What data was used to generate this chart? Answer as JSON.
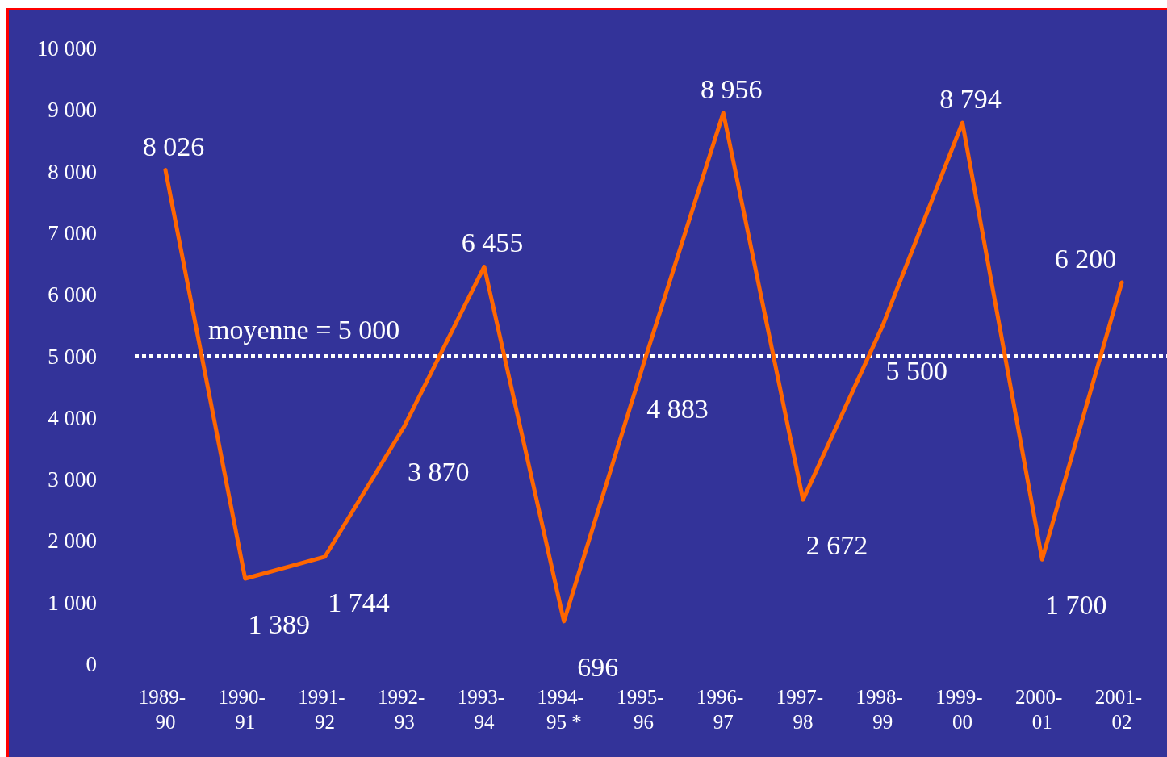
{
  "chart_data": {
    "type": "line",
    "categories": [
      "1989-90",
      "1990-91",
      "1991-92",
      "1992-93",
      "1993-94",
      "1994-95 *",
      "1995-96",
      "1996-97",
      "1997-98",
      "1998-99",
      "1999-00",
      "2000-01",
      "2001-02"
    ],
    "series": [
      {
        "color": "#ff6600",
        "values": [
          8026,
          1389,
          1744,
          3870,
          6455,
          696,
          4883,
          8956,
          2672,
          5500,
          8794,
          1700,
          6200
        ],
        "value_labels": [
          "8 026",
          "1 389",
          "1 744",
          "3 870",
          "6 455",
          "696",
          "4 883",
          "8 956",
          "2 672",
          "5 500",
          "8 794",
          "1 700",
          "6 200"
        ]
      }
    ],
    "ylim": [
      0,
      10000
    ],
    "yticks": [
      0,
      {
        "value": 1000,
        "label": "1 000"
      },
      {
        "value": 2000,
        "label": "2 000"
      },
      {
        "value": 3000,
        "label": "3 000"
      },
      {
        "value": 4000,
        "label": "4 000"
      },
      {
        "value": 5000,
        "label": "5 000"
      },
      {
        "value": 6000,
        "label": "6 000"
      },
      {
        "value": 7000,
        "label": "7 000"
      },
      {
        "value": 8000,
        "label": "8 000"
      },
      {
        "value": 9000,
        "label": "9 000"
      },
      {
        "value": 10000,
        "label": "10 000"
      }
    ],
    "ref_lines": [
      {
        "axis": "y",
        "value": 5000,
        "label": "moyenne = 5 000",
        "color": "#ffffff",
        "line_style": "dotted"
      }
    ],
    "grid": false,
    "marker": "none",
    "line_style": "solid"
  }
}
